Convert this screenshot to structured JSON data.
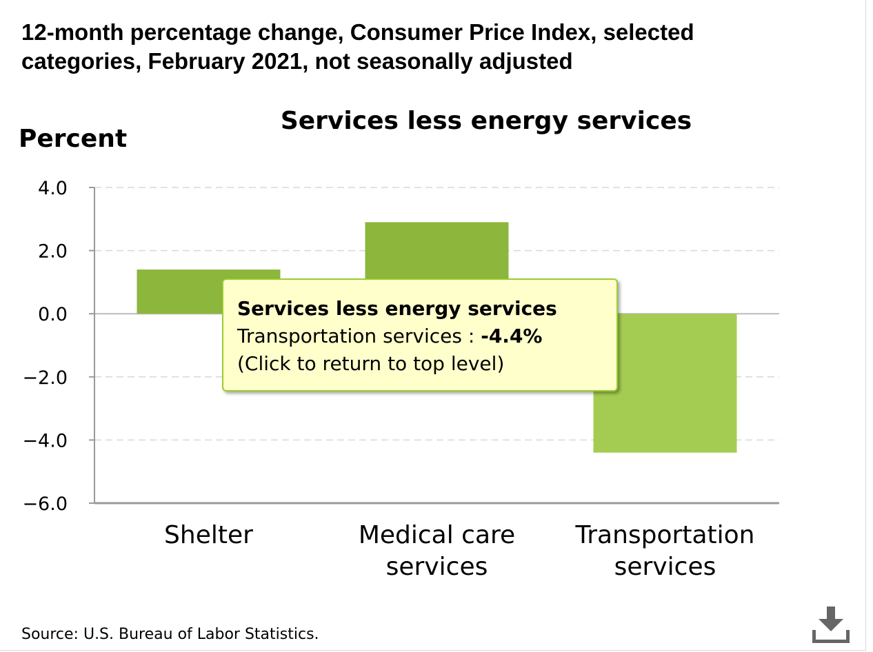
{
  "page": {
    "title": "12-month percentage change, Consumer Price Index, selected categories, February 2021, not seasonally adjusted",
    "source": "Source: U.S. Bureau of Labor Statistics.",
    "download_icon": "download-icon"
  },
  "chart_data": {
    "type": "bar",
    "title": "Services less energy services",
    "ylabel": "Percent",
    "xlabel": "",
    "categories": [
      "Shelter",
      "Medical care services",
      "Transportation services"
    ],
    "category_lines": [
      [
        "Shelter"
      ],
      [
        "Medical care",
        "services"
      ],
      [
        "Transportation",
        "services"
      ]
    ],
    "values": [
      1.4,
      2.9,
      -4.4
    ],
    "colors": [
      "#8db63c",
      "#8db63c",
      "#a5cc52"
    ],
    "ylim": [
      -6.0,
      4.0
    ],
    "yticks": [
      4.0,
      2.0,
      0.0,
      -2.0,
      -4.0,
      -6.0
    ],
    "ytick_labels": [
      "4.0",
      "2.0",
      "0.0",
      "−2.0",
      "−4.0",
      "−6.0"
    ],
    "grid": true,
    "legend": "none"
  },
  "tooltip": {
    "title": "Services less energy services",
    "label": "Transportation services : ",
    "value": "-4.4%",
    "hint": "(Click to return to top level)"
  },
  "colors": {
    "bar": "#8db63c",
    "bar_highlight": "#a5cc52",
    "tooltip_bg": "#ffffcc",
    "tooltip_border": "#9acd32"
  }
}
